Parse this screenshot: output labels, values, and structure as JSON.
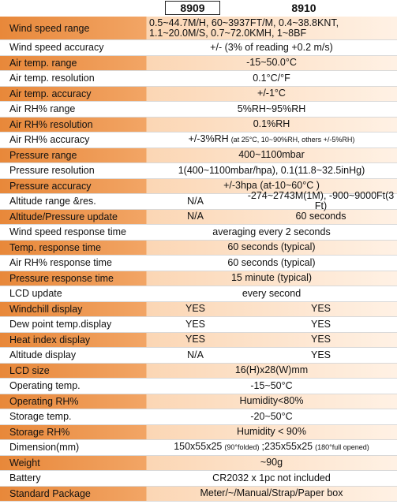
{
  "header": {
    "model_a": "8909",
    "model_b": "8910"
  },
  "rows": [
    {
      "label": "Wind speed range",
      "cells": [
        [
          "0.5~44.7M/H, 60~3937FT/M, 0.4~38.8KNT, 1.1~20.0M/S, 0.7~72.0KMH, 1~8BF"
        ]
      ]
    },
    {
      "label": "Wind speed accuracy",
      "cells": [
        [
          "+/- (3% of reading +0.2 m/s)"
        ]
      ]
    },
    {
      "label": "Air temp. range",
      "cells": [
        [
          "-15~50.0°C"
        ]
      ]
    },
    {
      "label": "Air temp. resolution",
      "cells": [
        [
          "0.1°C/°F"
        ]
      ]
    },
    {
      "label": "Air temp. accuracy",
      "cells": [
        [
          "+/-1°C"
        ]
      ]
    },
    {
      "label": "Air RH% range",
      "cells": [
        [
          "5%RH~95%RH"
        ]
      ]
    },
    {
      "label": "Air RH% resolution",
      "cells": [
        [
          "0.1%RH"
        ]
      ]
    },
    {
      "label": "Air RH% accuracy",
      "cells": [
        [
          "+/-3%RH",
          "(at 25°C, 10~90%RH, others +/-5%RH)"
        ]
      ]
    },
    {
      "label": "Pressure range",
      "cells": [
        [
          "400~1100mbar"
        ]
      ]
    },
    {
      "label": "Pressure resolution",
      "cells": [
        [
          "1(400~1100mbar/hpa), 0.1(11.8~32.5inHg)"
        ]
      ]
    },
    {
      "label": "Pressure accuracy",
      "cells": [
        [
          "+/-3hpa (at-10~60°C )"
        ]
      ]
    },
    {
      "label": "Altitude range &res.",
      "cells": [
        [
          "N/A"
        ],
        [
          "-274~2743M(1M), -900~9000Ft(3 Ft)"
        ]
      ]
    },
    {
      "label": "Altitude/Pressure update",
      "cells": [
        [
          "N/A"
        ],
        [
          "60 seconds"
        ]
      ]
    },
    {
      "label": "Wind speed response time",
      "cells": [
        [
          "averaging every 2 seconds"
        ]
      ]
    },
    {
      "label": "Temp. response time",
      "cells": [
        [
          "60 seconds (typical)"
        ]
      ]
    },
    {
      "label": "Air RH% response time",
      "cells": [
        [
          "60 seconds (typical)"
        ]
      ]
    },
    {
      "label": "Pressure response time",
      "cells": [
        [
          "15 minute (typical)"
        ]
      ]
    },
    {
      "label": "LCD update",
      "cells": [
        [
          "every second"
        ]
      ]
    },
    {
      "label": "Windchill display",
      "cells": [
        [
          "YES"
        ],
        [
          "YES"
        ]
      ]
    },
    {
      "label": "Dew point temp.display",
      "cells": [
        [
          "YES"
        ],
        [
          "YES"
        ]
      ]
    },
    {
      "label": "Heat index display",
      "cells": [
        [
          "YES"
        ],
        [
          "YES"
        ]
      ]
    },
    {
      "label": "Altitude display",
      "cells": [
        [
          "N/A"
        ],
        [
          "YES"
        ]
      ]
    },
    {
      "label": "LCD size",
      "cells": [
        [
          "16(H)x28(W)mm"
        ]
      ]
    },
    {
      "label": "Operating temp.",
      "cells": [
        [
          "-15~50°C"
        ]
      ]
    },
    {
      "label": "Operating RH%",
      "cells": [
        [
          "Humidity<80%"
        ]
      ]
    },
    {
      "label": "Storage temp.",
      "cells": [
        [
          "-20~50°C"
        ]
      ]
    },
    {
      "label": "Storage RH%",
      "cells": [
        [
          "Humidity < 90%"
        ]
      ]
    },
    {
      "label": "Dimension(mm)",
      "cells": [
        [
          "150x55x25",
          "(90°folded)",
          ";235x55x25",
          "(180°full opened)"
        ]
      ]
    },
    {
      "label": "Weight",
      "cells": [
        [
          "~90g"
        ]
      ]
    },
    {
      "label": "Battery",
      "cells": [
        [
          "CR2032 x 1pc",
          "not included"
        ]
      ]
    },
    {
      "label": "Standard Package",
      "cells": [
        [
          "Meter/~/Manual/Strap/Paper box"
        ]
      ]
    }
  ]
}
